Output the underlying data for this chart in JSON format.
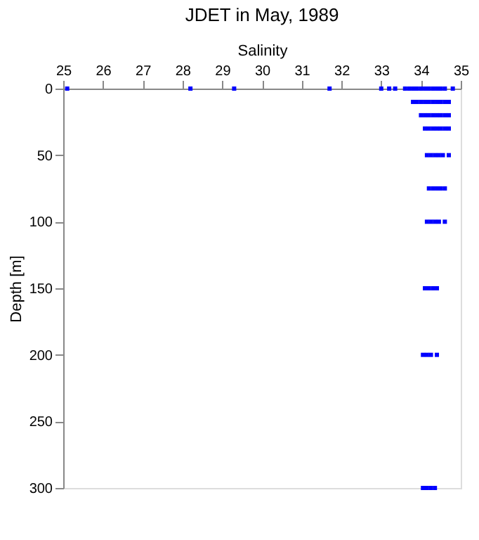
{
  "chart_data": {
    "type": "scatter",
    "title": "JDET in May, 1989",
    "xlabel": "Salinity",
    "ylabel": "Depth [m]",
    "x": [
      25.1,
      28.2,
      29.3,
      31.7,
      33.0,
      33.2,
      33.35,
      33.6,
      33.7,
      33.8,
      33.9,
      34.0,
      34.1,
      34.2,
      34.3,
      34.4,
      34.5,
      34.6,
      34.8,
      33.8,
      33.9,
      34.0,
      34.1,
      34.2,
      34.3,
      34.4,
      34.5,
      34.6,
      34.7,
      34.0,
      34.1,
      34.2,
      34.3,
      34.4,
      34.5,
      34.6,
      34.7,
      34.1,
      34.2,
      34.3,
      34.4,
      34.5,
      34.6,
      34.7,
      34.15,
      34.25,
      34.35,
      34.45,
      34.55,
      34.7,
      34.2,
      34.3,
      34.4,
      34.5,
      34.6,
      34.15,
      34.25,
      34.35,
      34.45,
      34.6,
      34.1,
      34.2,
      34.3,
      34.4,
      34.05,
      34.15,
      34.25,
      34.4,
      34.05,
      34.15,
      34.25,
      34.35
    ],
    "values": [
      0,
      0,
      0,
      0,
      0,
      0,
      0,
      0,
      0,
      0,
      0,
      0,
      0,
      0,
      0,
      0,
      0,
      0,
      0,
      10,
      10,
      10,
      10,
      10,
      10,
      10,
      10,
      10,
      10,
      20,
      20,
      20,
      20,
      20,
      20,
      20,
      20,
      30,
      30,
      30,
      30,
      30,
      30,
      30,
      50,
      50,
      50,
      50,
      50,
      50,
      75,
      75,
      75,
      75,
      75,
      100,
      100,
      100,
      100,
      100,
      150,
      150,
      150,
      150,
      200,
      200,
      200,
      200,
      300,
      300,
      300,
      300
    ],
    "color": "#0000ff",
    "marker": "square",
    "xlim": [
      25,
      35
    ],
    "xticks": [
      25,
      26,
      27,
      28,
      29,
      30,
      31,
      32,
      33,
      34,
      35
    ],
    "ylim": [
      300,
      0
    ],
    "yticks": [
      0,
      50,
      100,
      150,
      200,
      250,
      300
    ],
    "grid": false
  }
}
